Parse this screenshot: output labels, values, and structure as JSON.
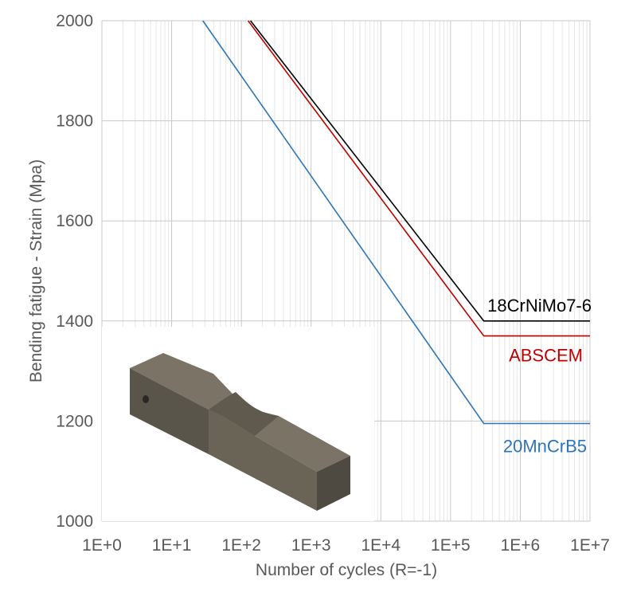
{
  "chart_data": {
    "type": "line",
    "xlabel": "Number of cycles (R=-1)",
    "ylabel": "Bending fatigue  - Strain (Mpa)",
    "x_scale": "log10",
    "xlim": [
      1,
      10000000
    ],
    "ylim": [
      1000,
      2000
    ],
    "x_ticks": [
      {
        "value": 1,
        "label": "1E+0"
      },
      {
        "value": 10,
        "label": "1E+1"
      },
      {
        "value": 100,
        "label": "1E+2"
      },
      {
        "value": 1000,
        "label": "1E+3"
      },
      {
        "value": 10000,
        "label": "1E+4"
      },
      {
        "value": 100000,
        "label": "1E+5"
      },
      {
        "value": 1000000,
        "label": "1E+6"
      },
      {
        "value": 10000000,
        "label": "1E+7"
      }
    ],
    "y_ticks": [
      {
        "value": 1000,
        "label": "1000"
      },
      {
        "value": 1200,
        "label": "1200"
      },
      {
        "value": 1400,
        "label": "1400"
      },
      {
        "value": 1600,
        "label": "1600"
      },
      {
        "value": 1800,
        "label": "1800"
      },
      {
        "value": 2000,
        "label": "2000"
      }
    ],
    "grid": true,
    "series": [
      {
        "name": "18CrNiMo7-6",
        "color": "#000000",
        "x": [
          135,
          300000,
          10000000
        ],
        "y": [
          2000,
          1400,
          1400
        ]
      },
      {
        "name": "ABSCEM",
        "color": "#c00000",
        "x": [
          125,
          300000,
          10000000
        ],
        "y": [
          2000,
          1370,
          1370
        ]
      },
      {
        "name": "20MnCrB5",
        "color": "#2e75b6",
        "x": [
          28,
          300000,
          10000000
        ],
        "y": [
          2000,
          1195,
          1195
        ]
      }
    ],
    "inset_image": "fatigue-specimen-3d-render"
  }
}
